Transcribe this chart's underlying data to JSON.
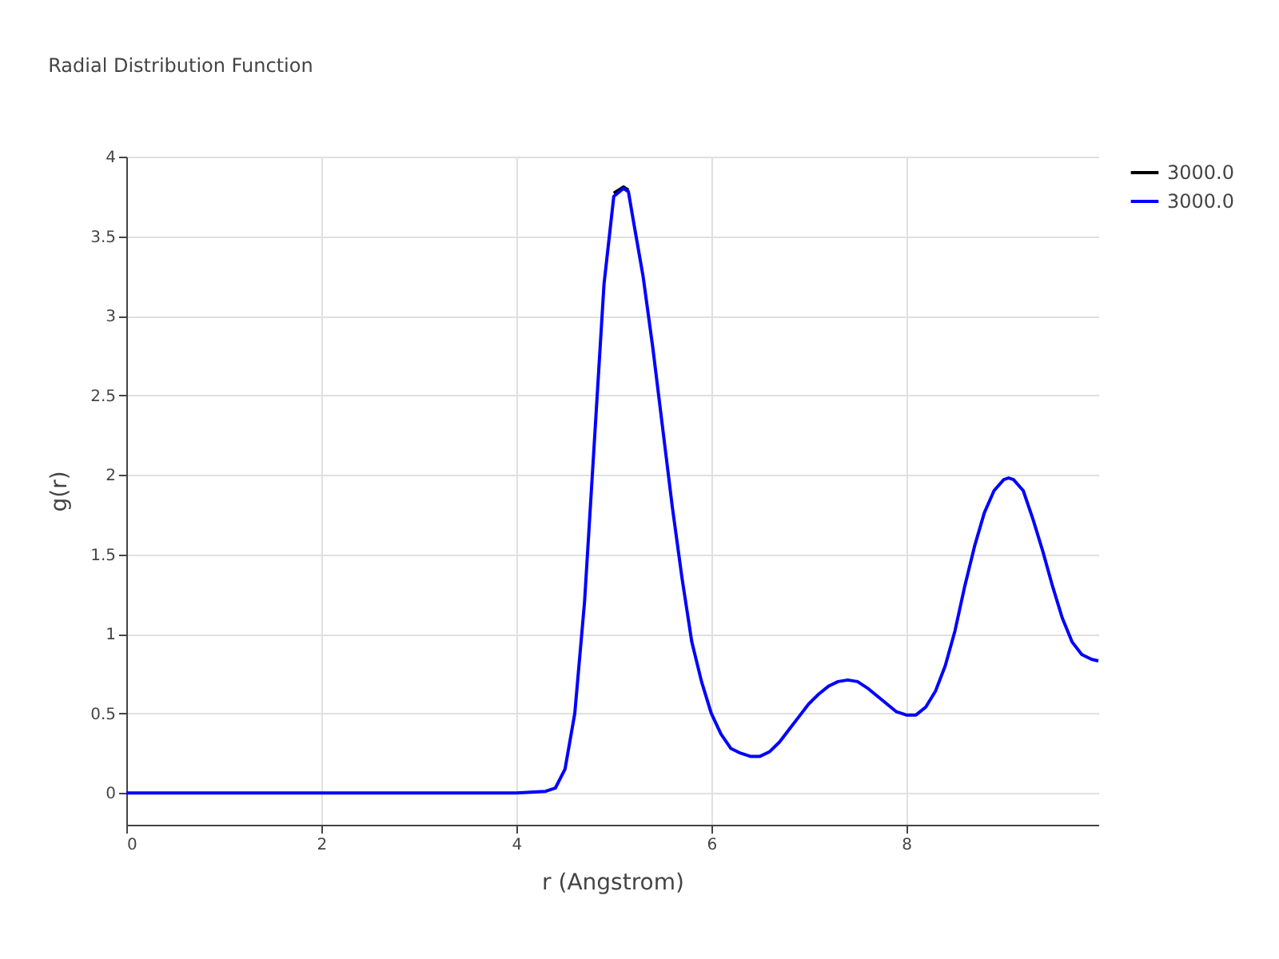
{
  "chart_data": {
    "type": "line",
    "title": "Radial Distribution Function",
    "xlabel": "r (Angstrom)",
    "ylabel": "g(r)",
    "x": [
      0,
      1,
      2,
      3,
      4,
      4.3,
      4.4,
      4.5,
      4.6,
      4.7,
      4.8,
      4.9,
      5.0,
      5.1,
      5.15,
      5.2,
      5.3,
      5.4,
      5.5,
      5.6,
      5.7,
      5.8,
      5.9,
      6.0,
      6.1,
      6.2,
      6.3,
      6.4,
      6.5,
      6.6,
      6.7,
      6.8,
      6.9,
      7.0,
      7.1,
      7.2,
      7.3,
      7.4,
      7.5,
      7.6,
      7.7,
      7.8,
      7.9,
      8.0,
      8.1,
      8.2,
      8.3,
      8.4,
      8.5,
      8.6,
      8.7,
      8.8,
      8.9,
      9.0,
      9.05,
      9.1,
      9.2,
      9.3,
      9.4,
      9.5,
      9.6,
      9.7,
      9.8,
      9.9,
      9.97
    ],
    "series": [
      {
        "name": "3000.0",
        "color": "#000000",
        "values": [
          null,
          null,
          null,
          null,
          null,
          null,
          null,
          null,
          null,
          null,
          null,
          null,
          3.77,
          3.81,
          3.79,
          null,
          null,
          null,
          null,
          null,
          null,
          null,
          null,
          null,
          null,
          null,
          null,
          null,
          null,
          null,
          null,
          null,
          null,
          null,
          null,
          null,
          null,
          null,
          null,
          null,
          null,
          null,
          null,
          null,
          null,
          null,
          null,
          null,
          null,
          null,
          null,
          null,
          null,
          null,
          null,
          null,
          null,
          null,
          null,
          null,
          null,
          null,
          null,
          null,
          null
        ]
      },
      {
        "name": "3000.0",
        "color": "#0000ff",
        "values": [
          0,
          0,
          0,
          0,
          0,
          0.01,
          0.03,
          0.15,
          0.5,
          1.2,
          2.2,
          3.2,
          3.75,
          3.8,
          3.78,
          3.6,
          3.25,
          2.8,
          2.3,
          1.8,
          1.35,
          0.95,
          0.7,
          0.5,
          0.37,
          0.28,
          0.25,
          0.23,
          0.23,
          0.26,
          0.32,
          0.4,
          0.48,
          0.56,
          0.62,
          0.67,
          0.7,
          0.71,
          0.7,
          0.66,
          0.61,
          0.56,
          0.51,
          0.49,
          0.49,
          0.54,
          0.64,
          0.8,
          1.02,
          1.3,
          1.55,
          1.76,
          1.9,
          1.97,
          1.98,
          1.97,
          1.9,
          1.72,
          1.52,
          1.3,
          1.1,
          0.95,
          0.87,
          0.84,
          0.83
        ]
      }
    ],
    "xlim": [
      0,
      9.97
    ],
    "xticks": [
      0,
      2,
      4,
      6,
      8
    ],
    "ylim": [
      -0.2,
      4
    ],
    "yticks": [
      0,
      0.5,
      1,
      1.5,
      2,
      2.5,
      3,
      3.5,
      4
    ],
    "grid": true,
    "legend": "top right",
    "marker": "none",
    "line_style": "solid"
  }
}
